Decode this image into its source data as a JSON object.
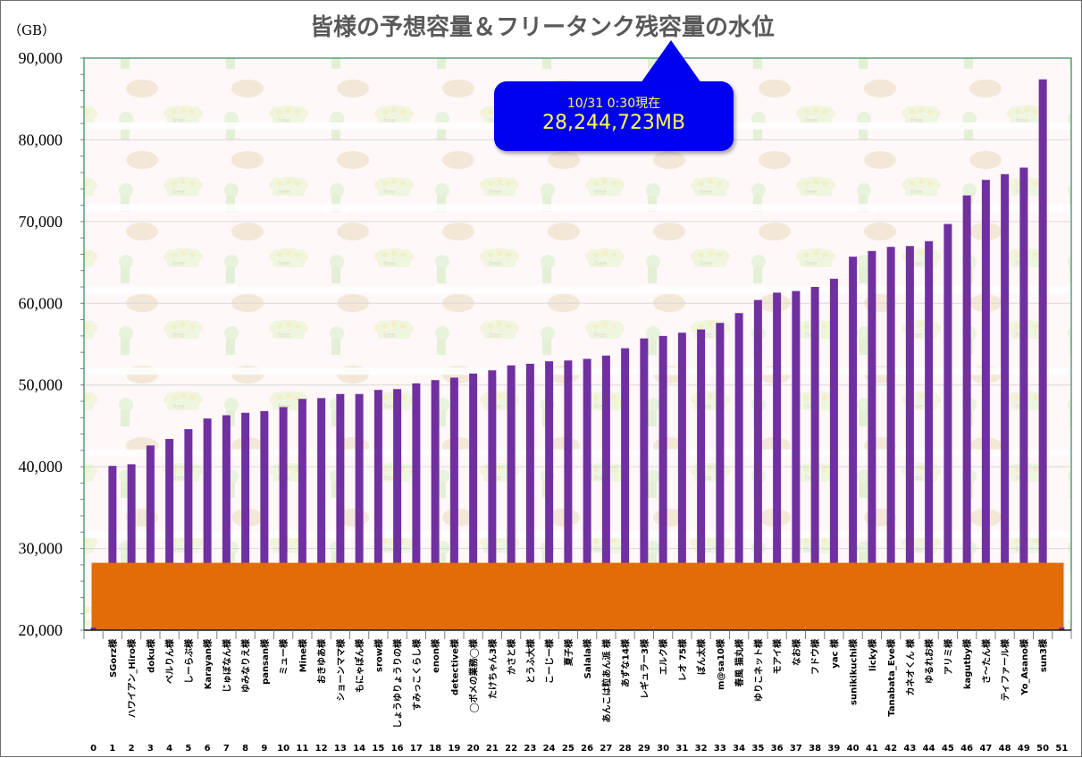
{
  "chart_data": {
    "type": "bar",
    "title": "皆様の予想容量＆フリータンク残容量の水位",
    "y_unit_label": "（GB）",
    "ylim": [
      20000,
      90000
    ],
    "yticks": [
      "20,000",
      "30,000",
      "40,000",
      "50,000",
      "60,000",
      "70,000",
      "80,000",
      "90,000"
    ],
    "ytick_values": [
      20000,
      30000,
      40000,
      50000,
      60000,
      70000,
      80000,
      90000
    ],
    "tank_level_gb": 28245,
    "annotation": {
      "date": "10/31 0:30現在",
      "value": "28,244,723MB"
    },
    "categories": [
      "",
      "SGorz様",
      "ハワイアン_Hiro様",
      "doku様",
      "ベルりん様",
      "しーらぶ様",
      "Karayan様",
      "じゅぼなん様",
      "ゆみなりえ様",
      "pansan様",
      "ミュー様",
      "Mine様",
      "おきゆあ様",
      "ショーンママ様",
      "もにゃぽん様",
      "srow様",
      "しょうゆりょうりの様",
      "すみっこくらし様",
      "enon様",
      "detective様",
      "◯ボメの業務◯様",
      "たけちゃん3様",
      "かさと様",
      "とうふ大様",
      "こーじー様",
      "夏子様",
      "Salala様",
      "あんこは粒あん派 様",
      "あずな14様",
      "レギュラー3様",
      "エルク様",
      "レオ 75様",
      "ぽん太様",
      "m@sa10様",
      "春風 猫丸様",
      "ゆりこネット様",
      "モアイ様",
      "なお様",
      "フドウ様",
      "yac 様",
      "sunikikuchi様",
      "licky様",
      "Tanabata_Eve様",
      "カネオくん 様",
      "ゆるれお様",
      "アリミ様",
      "kagutby様",
      "さ～たん様",
      "ティファール様",
      "Yo_Asano様",
      "sun3様",
      ""
    ],
    "x_numbers": [
      "0",
      "1",
      "2",
      "3",
      "4",
      "5",
      "6",
      "7",
      "8",
      "9",
      "10",
      "11",
      "12",
      "13",
      "14",
      "15",
      "16",
      "17",
      "18",
      "19",
      "20",
      "21",
      "22",
      "23",
      "24",
      "25",
      "26",
      "27",
      "28",
      "29",
      "30",
      "31",
      "32",
      "33",
      "34",
      "35",
      "36",
      "37",
      "38",
      "39",
      "40",
      "41",
      "42",
      "43",
      "44",
      "45",
      "46",
      "47",
      "48",
      "49",
      "50",
      "51"
    ],
    "values": [
      null,
      40100,
      40300,
      42600,
      43400,
      44600,
      45900,
      46300,
      46600,
      46800,
      47300,
      48300,
      48400,
      48900,
      48900,
      49400,
      49500,
      50200,
      50600,
      50900,
      51400,
      51800,
      52400,
      52600,
      52900,
      53000,
      53200,
      53600,
      54500,
      55700,
      56000,
      56400,
      56800,
      57600,
      58800,
      60400,
      61300,
      61500,
      62000,
      63000,
      65700,
      66400,
      66900,
      67000,
      67600,
      69700,
      73200,
      75100,
      75800,
      76600,
      87400,
      null
    ],
    "series_colors": {
      "bars": "#7030a0",
      "tank": "#e36c09"
    },
    "grid": true
  }
}
